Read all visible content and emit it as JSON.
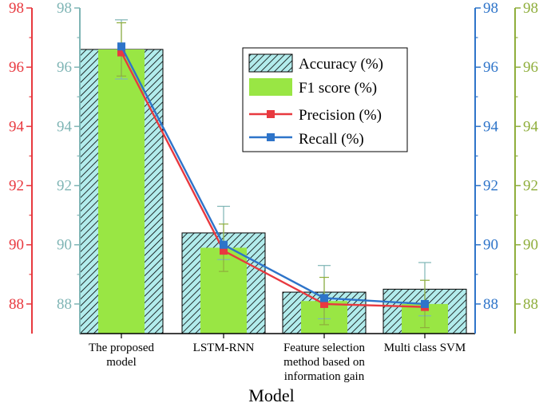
{
  "chart_data": {
    "type": "bar+line",
    "xlabel": "Model",
    "categories": [
      [
        "The proposed",
        "model"
      ],
      [
        "LSTM-RNN"
      ],
      [
        "Feature selection",
        "method based on",
        "information gain"
      ],
      [
        "Multi class SVM"
      ]
    ],
    "ylim": [
      87.0,
      98.0
    ],
    "yticks": [
      "88",
      "90",
      "92",
      "94",
      "96",
      "98"
    ],
    "series": [
      {
        "name": "Accuracy (%)",
        "kind": "bar",
        "values": [
          96.6,
          90.4,
          88.4,
          88.5
        ],
        "error": [
          1.0,
          0.9,
          0.9,
          0.9
        ]
      },
      {
        "name": "F1 score (%)",
        "kind": "bar",
        "values": [
          96.6,
          89.9,
          88.1,
          88.0
        ],
        "error": [
          0.9,
          0.8,
          0.8,
          0.8
        ]
      },
      {
        "name": "Precision (%)",
        "kind": "line",
        "values": [
          96.5,
          89.8,
          88.0,
          87.9
        ]
      },
      {
        "name": "Recall (%)",
        "kind": "line",
        "values": [
          96.7,
          90.0,
          88.2,
          88.0
        ]
      }
    ],
    "colors": {
      "accuracy_axis": "#7fb5b5",
      "precision_axis": "#e8393f",
      "recall_axis": "#2e74c9",
      "f1_axis": "#8fae3c",
      "accuracy_fill": "#b2ecec",
      "f1_fill": "#99e644",
      "precision_line": "#e8393f",
      "recall_line": "#2e74c9"
    }
  }
}
